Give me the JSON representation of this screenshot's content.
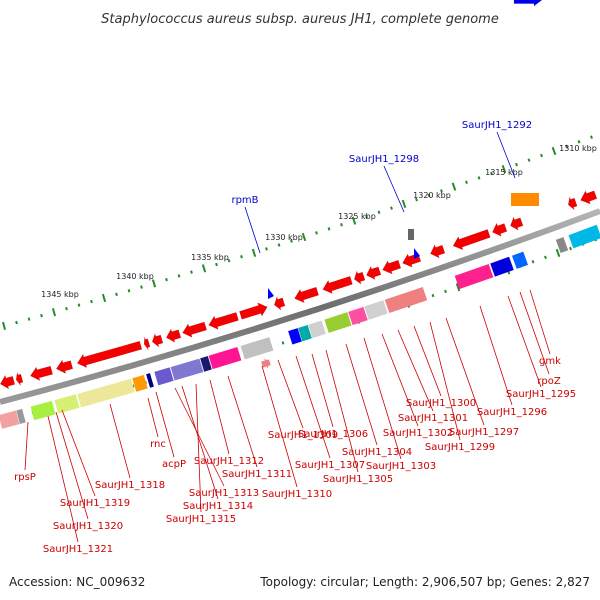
{
  "title": "Staphylococcus aureus subsp. aureus JH1, complete genome",
  "footer": {
    "accession": "Accession: NC_009632",
    "summary": "Topology: circular; Length: 2,906,507 bp; Genes: 2,827"
  },
  "kbp_marks": [
    "1345 kbp",
    "1340 kbp",
    "1335 kbp",
    "1330 kbp",
    "1325 kbp",
    "1320 kbp",
    "1315 kbp",
    "1310 kbp"
  ],
  "top_genes": [
    "rpmB",
    "SaurJH1_1298",
    "SaurJH1_1292"
  ],
  "bottom_genes": [
    "rpsP",
    "SaurJH1_1319",
    "SaurJH1_1320",
    "SaurJH1_1321",
    "SaurJH1_1318",
    "rnc",
    "acpP",
    "SaurJH1_1313",
    "SaurJH1_1314",
    "SaurJH1_1315",
    "SaurJH1_1312",
    "SaurJH1_1311",
    "SaurJH1_1310",
    "SaurJH1_1309",
    "SaurJH1_1307",
    "SaurJH1_1306",
    "SaurJH1_1305",
    "SaurJH1_1304",
    "SaurJH1_1303",
    "SaurJH1_1302",
    "SaurJH1_1301",
    "SaurJH1_1300",
    "SaurJH1_1299",
    "SaurJH1_1297",
    "SaurJH1_1296",
    "SaurJH1_1295",
    "rpoZ",
    "gmk"
  ],
  "colors": {
    "gene_arrow": "#ff0000",
    "gene_label": "#cc0000",
    "rna_label": "#0000cc",
    "backbone": "#777777",
    "tick": "#2a8a2a"
  }
}
